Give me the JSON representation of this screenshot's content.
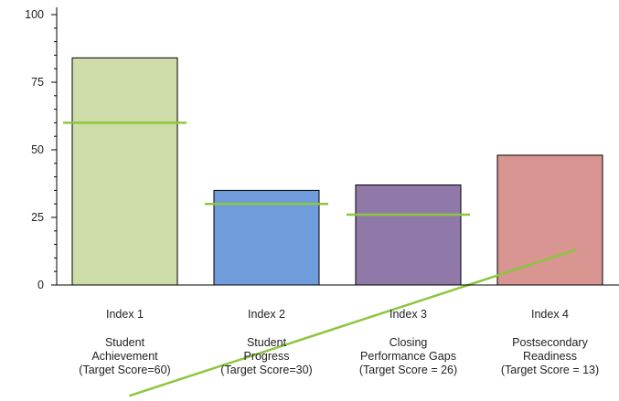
{
  "chart_data": {
    "type": "bar",
    "categories": [
      {
        "title": "Index 1",
        "lines": [
          "Student",
          "Achievement",
          "(Target Score=60)"
        ]
      },
      {
        "title": "Index 2",
        "lines": [
          "Student",
          "Progress",
          "(Target Score=30)"
        ]
      },
      {
        "title": "Index 3",
        "lines": [
          "Closing",
          "Performance Gaps",
          "(Target Score = 26)"
        ]
      },
      {
        "title": "Index 4",
        "lines": [
          "Postsecondary",
          "Readiness",
          "(Target Score = 13)"
        ]
      }
    ],
    "values": [
      84,
      35,
      37,
      48
    ],
    "targets": [
      60,
      30,
      26,
      null
    ],
    "trend_line": {
      "start": [
        0.5,
        -41
      ],
      "end": [
        3.65,
        13
      ]
    },
    "bar_colors": [
      "#cddca8",
      "#6f9ddb",
      "#9079a8",
      "#d89591"
    ],
    "target_color": "#8dc63f",
    "ylim": [
      0,
      100
    ],
    "yticks": [
      "0",
      "25",
      "50",
      "75",
      "100"
    ],
    "xlabel": "",
    "ylabel": "",
    "grid": false
  }
}
